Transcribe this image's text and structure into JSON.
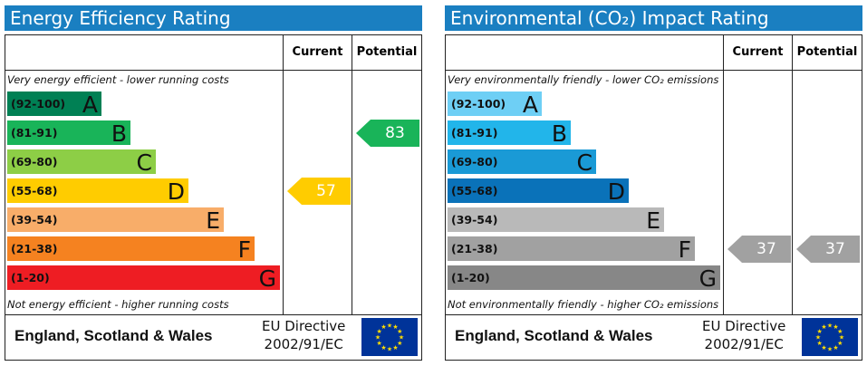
{
  "chart_data": [
    {
      "type": "bar",
      "title": "Energy Efficiency Rating",
      "column_headers": [
        "Current",
        "Potential"
      ],
      "top_note": "Very energy efficient - lower running costs",
      "bottom_note": "Not energy efficient - higher running costs",
      "bands": [
        {
          "range": "(92-100)",
          "letter": "A",
          "color": "#008054"
        },
        {
          "range": "(81-91)",
          "letter": "B",
          "color": "#19b459"
        },
        {
          "range": "(69-80)",
          "letter": "C",
          "color": "#8dce46"
        },
        {
          "range": "(55-68)",
          "letter": "D",
          "color": "#ffcc00"
        },
        {
          "range": "(39-54)",
          "letter": "E",
          "color": "#f8ad69"
        },
        {
          "range": "(21-38)",
          "letter": "F",
          "color": "#f58220"
        },
        {
          "range": "(1-20)",
          "letter": "G",
          "color": "#ee1d23"
        }
      ],
      "current": {
        "value": 57,
        "band": "D",
        "color": "#ffcc00"
      },
      "potential": {
        "value": 83,
        "band": "B",
        "color": "#19b459"
      },
      "footer": {
        "region": "England, Scotland & Wales",
        "directive_line1": "EU Directive",
        "directive_line2": "2002/91/EC"
      }
    },
    {
      "type": "bar",
      "title": "Environmental (CO₂) Impact Rating",
      "column_headers": [
        "Current",
        "Potential"
      ],
      "top_note": "Very environmentally friendly - lower CO₂ emissions",
      "bottom_note": "Not environmentally friendly - higher CO₂ emissions",
      "bands": [
        {
          "range": "(92-100)",
          "letter": "A",
          "color": "#6ecff5"
        },
        {
          "range": "(81-91)",
          "letter": "B",
          "color": "#22b5ea"
        },
        {
          "range": "(69-80)",
          "letter": "C",
          "color": "#1a9ad6"
        },
        {
          "range": "(55-68)",
          "letter": "D",
          "color": "#0a72b9"
        },
        {
          "range": "(39-54)",
          "letter": "E",
          "color": "#b9b9b9"
        },
        {
          "range": "(21-38)",
          "letter": "F",
          "color": "#a1a1a1"
        },
        {
          "range": "(1-20)",
          "letter": "G",
          "color": "#878787"
        }
      ],
      "current": {
        "value": 37,
        "band": "F",
        "color": "#a1a1a1"
      },
      "potential": {
        "value": 37,
        "band": "F",
        "color": "#a1a1a1"
      },
      "footer": {
        "region": "England, Scotland & Wales",
        "directive_line1": "EU Directive",
        "directive_line2": "2002/91/EC"
      }
    }
  ],
  "colors": {
    "title_bar": "#1a7fc1",
    "eu_flag": "#003399",
    "eu_stars": "#ffdd00"
  }
}
